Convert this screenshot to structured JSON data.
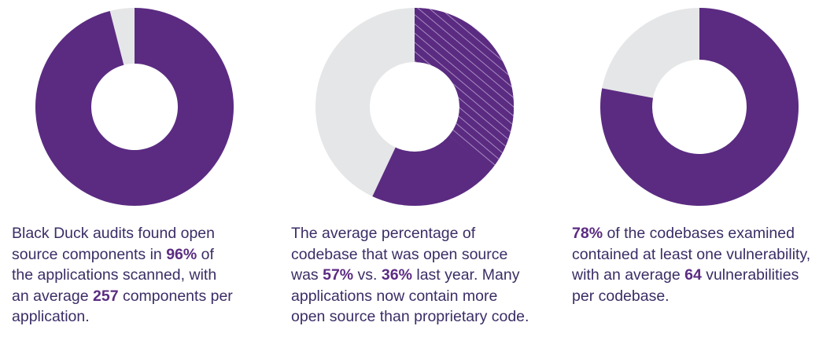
{
  "chart_data": [
    {
      "type": "donut",
      "values": [
        96
      ],
      "color": "#5b2b82",
      "rest_color": "#e5e6e8"
    },
    {
      "type": "donut",
      "values": [
        57
      ],
      "overlay_values": [
        36
      ],
      "overlay_pattern": "hatch",
      "color": "#5b2b82",
      "rest_color": "#e5e6e8"
    },
    {
      "type": "donut",
      "values": [
        78
      ],
      "color": "#5b2b82",
      "rest_color": "#e5e6e8"
    }
  ],
  "captions": [
    [
      [
        "Black Duck audits found open"
      ],
      [
        "source components in ",
        {
          "bold": "96%"
        },
        " of"
      ],
      [
        "the applications scanned, with"
      ],
      [
        "an average ",
        {
          "bold": "257"
        },
        " components per"
      ],
      [
        "application."
      ]
    ],
    [
      [
        "The average percentage of"
      ],
      [
        "codebase that was open source"
      ],
      [
        "was ",
        {
          "bold": "57%"
        },
        " vs. ",
        {
          "bold": "36%"
        },
        " last year. Many"
      ],
      [
        "applications now contain more"
      ],
      [
        "open source than proprietary code."
      ]
    ],
    [
      [
        {
          "bold": "78%"
        },
        " of the codebases examined"
      ],
      [
        "contained at least one vulnerability,"
      ],
      [
        "with an average ",
        {
          "bold": "64"
        },
        " vulnerabilities"
      ],
      [
        "per codebase."
      ]
    ]
  ]
}
